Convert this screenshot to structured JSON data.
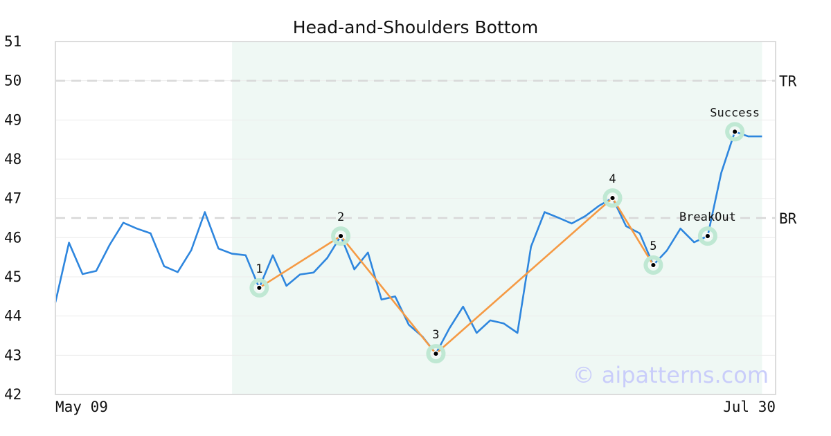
{
  "chart_data": {
    "type": "line",
    "title": "Head-and-Shoulders Bottom",
    "xlabel": "",
    "ylabel": "",
    "ylim": [
      42,
      51
    ],
    "y_ticks": [
      "42",
      "43",
      "44",
      "45",
      "46",
      "47",
      "48",
      "49",
      "50",
      "51"
    ],
    "x_tick_labels": {
      "start": "May 09",
      "end": "Jul 30"
    },
    "grid": true,
    "pattern_region": {
      "from_index": 13,
      "to_index": 52
    },
    "levels": [
      {
        "label": "TR",
        "value": 50.0
      },
      {
        "label": "BR",
        "value": 46.5
      }
    ],
    "series": [
      {
        "values": [
          44.35,
          45.87,
          45.07,
          45.15,
          45.82,
          46.38,
          46.23,
          46.11,
          45.27,
          45.12,
          45.68,
          46.65,
          45.72,
          45.59,
          45.55,
          44.72,
          45.55,
          44.77,
          45.06,
          45.11,
          45.48,
          46.04,
          45.19,
          45.62,
          44.42,
          44.5,
          43.78,
          43.48,
          43.04,
          43.69,
          44.24,
          43.57,
          43.89,
          43.81,
          43.57,
          45.77,
          46.65,
          46.51,
          46.36,
          46.55,
          46.81,
          47.01,
          46.29,
          46.11,
          45.3,
          45.67,
          46.23,
          45.88,
          46.04,
          47.65,
          48.7,
          48.58,
          48.58
        ],
        "color": "#2e86de"
      }
    ],
    "pattern_points": [
      {
        "label": "1",
        "index": 15,
        "value": 44.72
      },
      {
        "label": "2",
        "index": 21,
        "value": 46.04
      },
      {
        "label": "3",
        "index": 28,
        "value": 43.04
      },
      {
        "label": "4",
        "index": 41,
        "value": 47.01
      },
      {
        "label": "5",
        "index": 44,
        "value": 45.3
      },
      {
        "label": "BreakOut",
        "index": 48,
        "value": 46.04
      },
      {
        "label": "Success",
        "index": 50,
        "value": 48.7
      }
    ],
    "pattern_line_color": "#f59a44",
    "marker_halo_color": "#bfe8d3",
    "region_color": "#eff8f4",
    "watermark": "© aipatterns.com"
  }
}
